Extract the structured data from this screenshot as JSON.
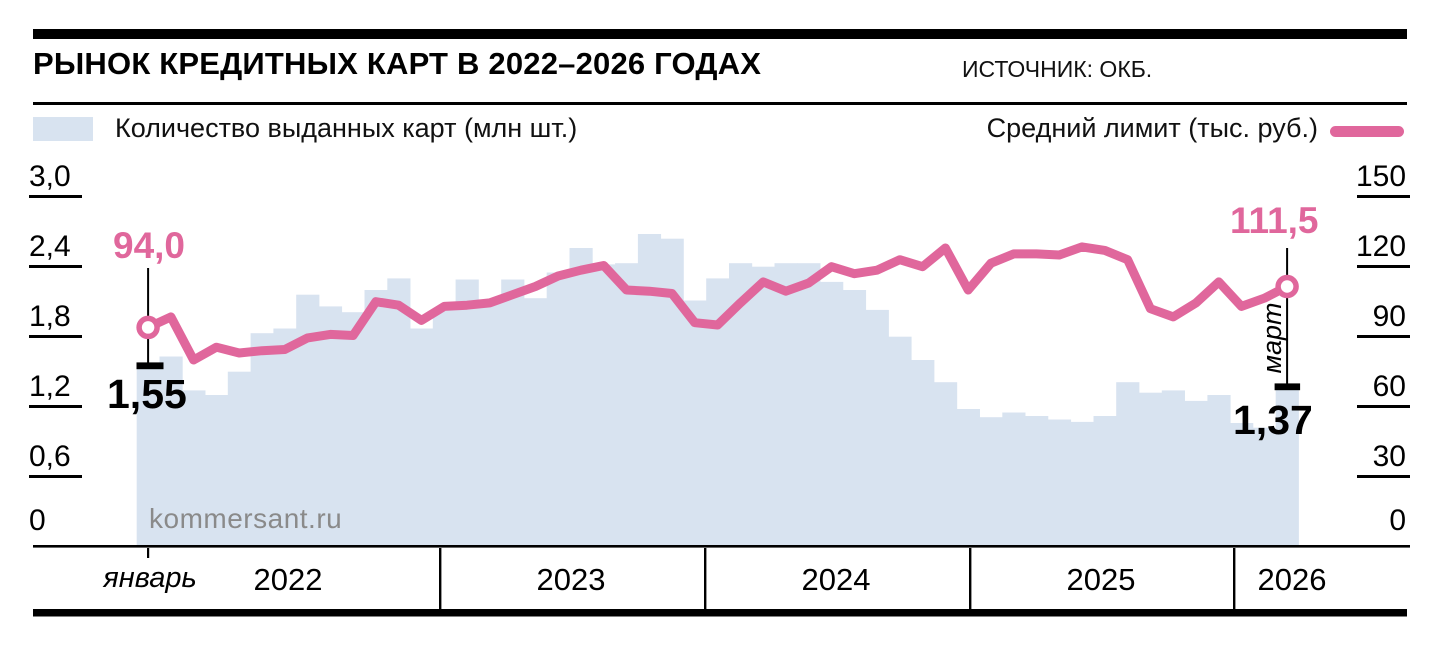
{
  "header": {
    "title": "РЫНОК КРЕДИТНЫХ КАРТ В 2022–2026 ГОДАХ",
    "source": "ИСТОЧНИК: ОКБ."
  },
  "legend": {
    "bars_label": "Количество выданных карт (млн шт.)",
    "line_label": "Средний лимит (тыс. руб.)"
  },
  "watermark": "kommersant.ru",
  "colors": {
    "bar": "#d8e3f0",
    "line": "#e0679c",
    "black": "#000000",
    "watermark": "#8a8a8a"
  },
  "axes": {
    "left_ticks": [
      "3,0",
      "2,4",
      "1,8",
      "1,2",
      "0,6",
      "0"
    ],
    "right_ticks": [
      "150",
      "120",
      "90",
      "60",
      "30",
      "0"
    ],
    "x_labels": [
      "январь",
      "2022",
      "2023",
      "2024",
      "2025",
      "2026"
    ]
  },
  "annotations": {
    "start_line_value": "94,0",
    "start_bar_value": "1,55",
    "end_line_value": "111,5",
    "end_month": "март",
    "end_bar_value": "1,37"
  },
  "chart_data": {
    "type": "bar",
    "subtype": "combo-bar-line",
    "title": "РЫНОК КРЕДИТНЫХ КАРТ В 2022–2026 ГОДАХ",
    "x_start": "2022-01",
    "x_end": "2026-03",
    "x_year_labels": [
      "январь",
      "2022",
      "2023",
      "2024",
      "2025",
      "2026"
    ],
    "left_axis": {
      "label": "Количество выданных карт (млн шт.)",
      "min": 0,
      "max": 3.0,
      "ticks": [
        0,
        0.6,
        1.2,
        1.8,
        2.4,
        3.0
      ]
    },
    "right_axis": {
      "label": "Средний лимит (тыс. руб.)",
      "min": 0,
      "max": 150,
      "ticks": [
        0,
        30,
        60,
        90,
        120,
        150
      ]
    },
    "grid": false,
    "legend_position": "top",
    "series": [
      {
        "name": "Количество выданных карт (млн шт.)",
        "type": "bar",
        "axis": "left",
        "values": [
          1.55,
          1.63,
          1.34,
          1.3,
          1.5,
          1.83,
          1.87,
          2.16,
          2.06,
          2.01,
          2.2,
          2.3,
          1.87,
          2.04,
          2.29,
          2.11,
          2.29,
          2.13,
          2.35,
          2.56,
          2.42,
          2.43,
          2.68,
          2.64,
          2.11,
          2.3,
          2.43,
          2.4,
          2.43,
          2.43,
          2.27,
          2.2,
          2.03,
          1.8,
          1.6,
          1.41,
          1.18,
          1.11,
          1.15,
          1.12,
          1.09,
          1.07,
          1.12,
          1.41,
          1.32,
          1.34,
          1.25,
          1.3,
          1.06,
          1.02,
          1.37
        ]
      },
      {
        "name": "Средний лимит (тыс. руб.)",
        "type": "line",
        "axis": "right",
        "values": [
          94.0,
          98.5,
          80.0,
          85.5,
          83.0,
          84.0,
          84.5,
          89.5,
          91.0,
          90.5,
          105.0,
          103.5,
          97.0,
          103.0,
          103.5,
          104.5,
          108.0,
          111.5,
          116.0,
          118.5,
          120.5,
          110.0,
          109.5,
          108.5,
          96.0,
          95.0,
          104.5,
          113.5,
          109.5,
          113.0,
          120.0,
          117.0,
          118.5,
          123.0,
          120.0,
          128.0,
          110.0,
          121.5,
          125.5,
          125.5,
          125.0,
          128.5,
          127.0,
          123.0,
          102.0,
          98.5,
          104.5,
          113.5,
          103.0,
          106.5,
          111.5
        ]
      }
    ],
    "annotated_points": {
      "first_month_line": 94.0,
      "first_month_bar": 1.55,
      "last_month_line": 111.5,
      "last_month_bar": 1.37,
      "last_month_name": "март"
    }
  }
}
